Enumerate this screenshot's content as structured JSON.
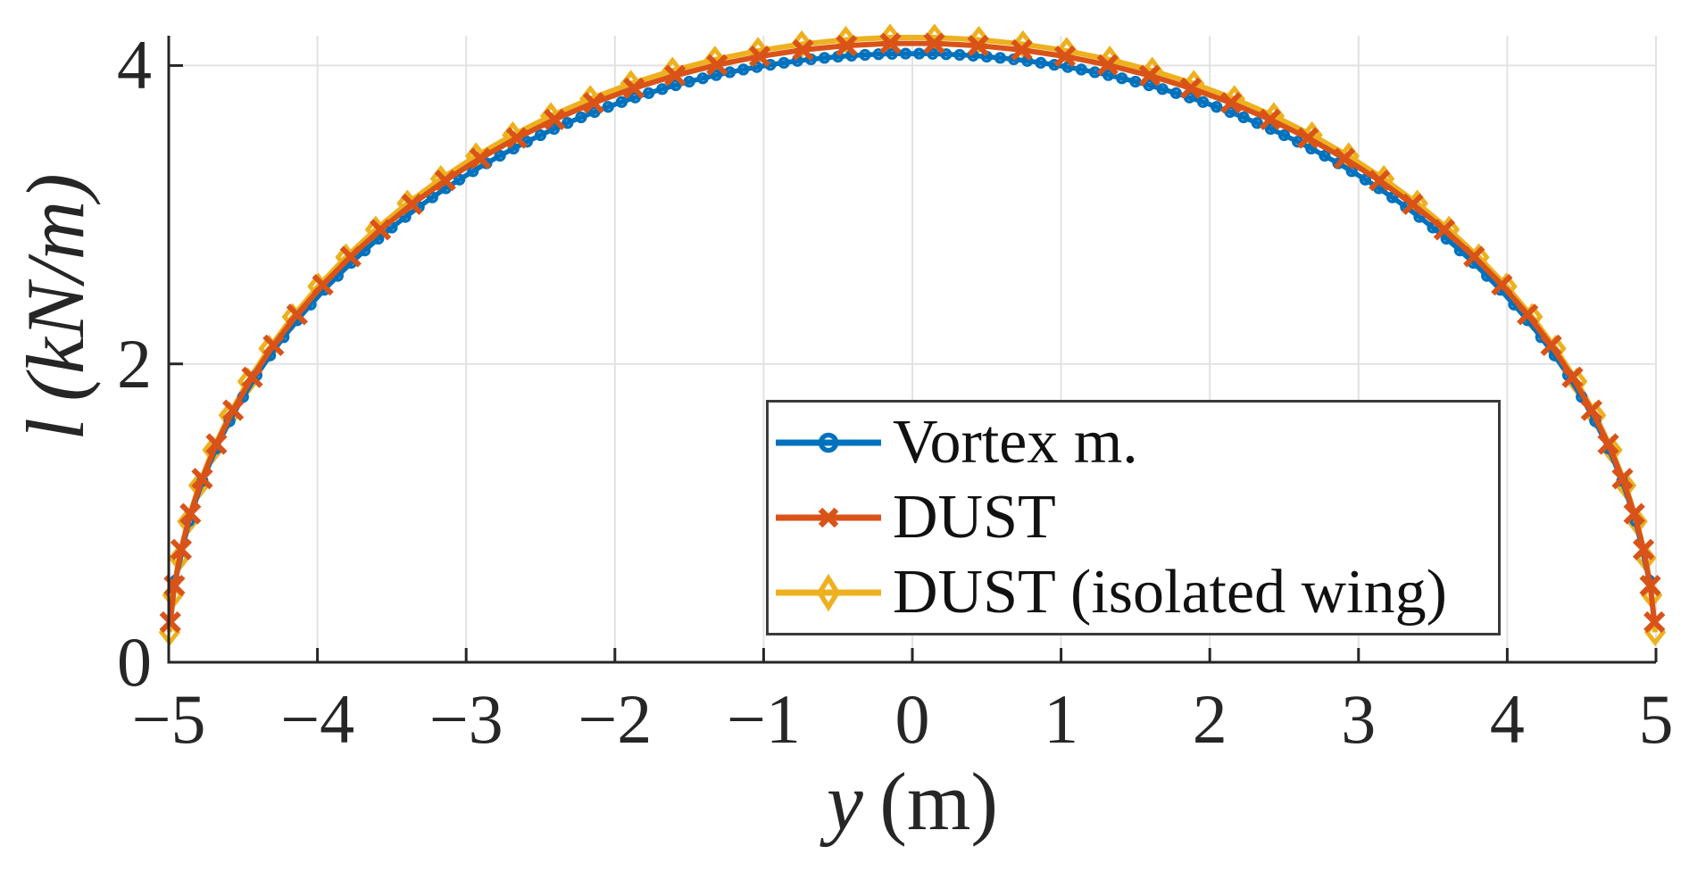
{
  "labels": {
    "xlabel_var": "y",
    "xlabel_unit": "(m)",
    "ylabel_var": "l",
    "ylabel_unit": "(kN/m)"
  },
  "legend": {
    "items": [
      {
        "label": "Vortex m."
      },
      {
        "label": "DUST"
      },
      {
        "label": "DUST (isolated wing)"
      }
    ]
  },
  "chart_data": {
    "type": "line",
    "title": "",
    "xlabel": "y (m)",
    "ylabel": "l (kN/m)",
    "xlim": [
      -5,
      5
    ],
    "ylim": [
      0,
      4.2
    ],
    "xticks": [
      -5,
      -4,
      -3,
      -2,
      -1,
      0,
      1,
      2,
      3,
      4,
      5
    ],
    "xtick_labels": [
      "−5",
      "−4",
      "−3",
      "−2",
      "−1",
      "0",
      "1",
      "2",
      "3",
      "4",
      "5"
    ],
    "yticks": [
      0,
      2,
      4
    ],
    "ytick_labels": [
      "0",
      "2",
      "4"
    ],
    "grid": true,
    "legend_position": "inside lower right",
    "axis_color": "#262626",
    "grid_color": "#e2e2e2",
    "background": "#ffffff",
    "draw_order": [
      2,
      0,
      1
    ],
    "series": [
      {
        "name": "Vortex m.",
        "color": "#0072BD",
        "marker": "circle",
        "line_width": 5.5,
        "shape": "elliptic",
        "peak": 4.08,
        "span": 10,
        "marker_layout": {
          "kind": "x-uniform-midpoint",
          "n": 110
        },
        "points": {
          "y": [
            -4.955,
            -4.9,
            -4.75,
            -4.5,
            -4.25,
            -4,
            -3.5,
            -3,
            -2.5,
            -2,
            -1.5,
            -1,
            -0.5,
            0,
            0.5,
            1,
            1.5,
            2,
            2.5,
            3,
            3.5,
            4,
            4.25,
            4.5,
            4.75,
            4.9,
            4.955
          ],
          "l": [
            0.77,
            0.81,
            1.27,
            1.78,
            2.15,
            2.45,
            2.91,
            3.26,
            3.53,
            3.74,
            3.89,
            4.0,
            4.06,
            4.08,
            4.06,
            4.0,
            3.89,
            3.74,
            3.53,
            3.26,
            2.91,
            2.45,
            2.15,
            1.78,
            1.27,
            0.81,
            0.77
          ]
        }
      },
      {
        "name": "DUST",
        "color": "#D95319",
        "marker": "x",
        "line_width": 6,
        "shape": "elliptic",
        "peak": 4.15,
        "span": 10,
        "marker_layout": {
          "kind": "theta-linear",
          "n": 52,
          "theta0": 0.065
        },
        "points": {
          "y": [
            -4.99,
            -4.95,
            -4.9,
            -4.75,
            -4.5,
            -4.25,
            -4,
            -3.5,
            -3,
            -2.5,
            -2,
            -1.5,
            -1,
            -0.5,
            0,
            0.5,
            1,
            1.5,
            2,
            2.5,
            3,
            3.5,
            4,
            4.25,
            4.5,
            4.75,
            4.9,
            4.95,
            4.99
          ],
          "l": [
            0.27,
            0.59,
            0.83,
            1.3,
            1.81,
            2.19,
            2.49,
            2.96,
            3.32,
            3.59,
            3.8,
            3.96,
            4.07,
            4.13,
            4.15,
            4.13,
            4.07,
            3.96,
            3.8,
            3.59,
            3.32,
            2.96,
            2.49,
            2.19,
            1.81,
            1.3,
            0.83,
            0.59,
            0.27
          ]
        }
      },
      {
        "name": "DUST (isolated wing)",
        "color": "#EDB120",
        "marker": "diamond",
        "line_width": 6,
        "shape": "elliptic",
        "peak": 4.19,
        "span": 10,
        "marker_layout": {
          "kind": "theta-linear",
          "n": 52,
          "theta0": 0.048
        },
        "points": {
          "y": [
            -4.995,
            -4.95,
            -4.9,
            -4.75,
            -4.5,
            -4.25,
            -4,
            -3.5,
            -3,
            -2.5,
            -2,
            -1.5,
            -1,
            -0.5,
            0,
            0.5,
            1,
            1.5,
            2,
            2.5,
            3,
            3.5,
            4,
            4.25,
            4.5,
            4.75,
            4.9,
            4.95,
            4.995
          ],
          "l": [
            0.2,
            0.59,
            0.83,
            1.31,
            1.83,
            2.21,
            2.51,
            3.0,
            3.35,
            3.63,
            3.84,
            4.0,
            4.1,
            4.17,
            4.19,
            4.17,
            4.1,
            4.0,
            3.84,
            3.63,
            3.35,
            3.0,
            2.51,
            2.21,
            1.83,
            1.31,
            0.83,
            0.59,
            0.2
          ]
        }
      }
    ]
  }
}
